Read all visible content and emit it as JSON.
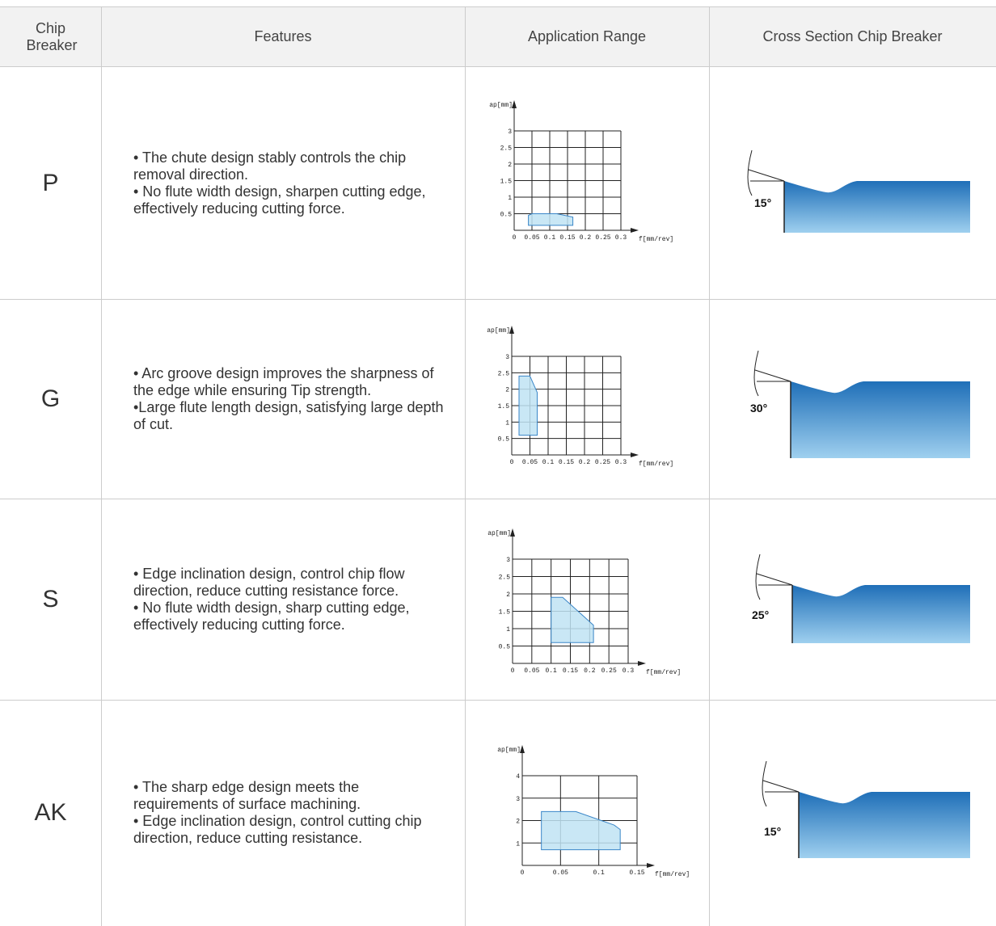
{
  "header": [
    "Chip Breaker",
    "Features",
    "Application Range",
    "Cross Section Chip Breaker"
  ],
  "rows": [
    {
      "name": "P",
      "features": [
        "• The chute design stably controls the chip removal direction.",
        "• No flute width design, sharpen cutting edge, effectively reducing cutting force."
      ],
      "range": {
        "xlabel": "f[mm/rev]",
        "ylabel": "ap[mm]",
        "xlim": [
          0,
          0.3
        ],
        "ylim": [
          0,
          3
        ],
        "xticks": [
          0,
          0.05,
          0.1,
          0.15,
          0.2,
          0.25,
          0.3
        ],
        "yticks": [
          0.5,
          1,
          1.5,
          2,
          2.5,
          3
        ],
        "region": {
          "f": [
            0.04,
            0.04,
            0.05,
            0.12,
            0.165,
            0.165
          ],
          "ap": [
            0.15,
            0.45,
            0.5,
            0.5,
            0.4,
            0.15
          ]
        }
      },
      "angle": "15°"
    },
    {
      "name": "G",
      "features": [
        "• Arc groove design improves the sharpness of the edge while ensuring Tip strength.",
        "•Large flute length design, satisfying large depth of cut."
      ],
      "range": {
        "xlabel": "f[mm/rev]",
        "ylabel": "ap[mm]",
        "xlim": [
          0,
          0.3
        ],
        "ylim": [
          0,
          3
        ],
        "xticks": [
          0,
          0.05,
          0.1,
          0.15,
          0.2,
          0.25,
          0.3
        ],
        "yticks": [
          0.5,
          1,
          1.5,
          2,
          2.5,
          3
        ],
        "region": {
          "f": [
            0.02,
            0.02,
            0.05,
            0.07,
            0.07
          ],
          "ap": [
            0.6,
            2.4,
            2.4,
            1.9,
            0.6
          ]
        }
      },
      "angle": "30°"
    },
    {
      "name": "S",
      "features": [
        "• Edge inclination design, control chip flow direction, reduce cutting resistance force.",
        "• No flute width design, sharp cutting edge, effectively reducing cutting force."
      ],
      "range": {
        "xlabel": "f[mm/rev]",
        "ylabel": "ap[mm]",
        "xlim": [
          0,
          0.3
        ],
        "ylim": [
          0,
          3
        ],
        "xticks": [
          0,
          0.05,
          0.1,
          0.15,
          0.2,
          0.25,
          0.3
        ],
        "yticks": [
          0.5,
          1,
          1.5,
          2,
          2.5,
          3
        ],
        "region": {
          "f": [
            0.1,
            0.1,
            0.13,
            0.21,
            0.21
          ],
          "ap": [
            0.6,
            1.9,
            1.9,
            1.1,
            0.6
          ]
        }
      },
      "angle": "25°"
    },
    {
      "name": "AK",
      "features": [
        "• The sharp edge design meets the requirements of surface machining.",
        "• Edge inclination design, control cutting chip direction, reduce cutting resistance."
      ],
      "range": {
        "xlabel": "f[mm/rev]",
        "ylabel": "ap[mm]",
        "xlim": [
          0,
          0.15
        ],
        "ylim": [
          0,
          4
        ],
        "xticks": [
          0,
          0.05,
          0.1,
          0.15
        ],
        "yticks": [
          1,
          2,
          3,
          4
        ],
        "region": {
          "f": [
            0.025,
            0.025,
            0.07,
            0.12,
            0.128,
            0.128
          ],
          "ap": [
            0.7,
            2.4,
            2.4,
            1.8,
            1.6,
            0.7
          ]
        }
      },
      "angle": "15°"
    }
  ]
}
